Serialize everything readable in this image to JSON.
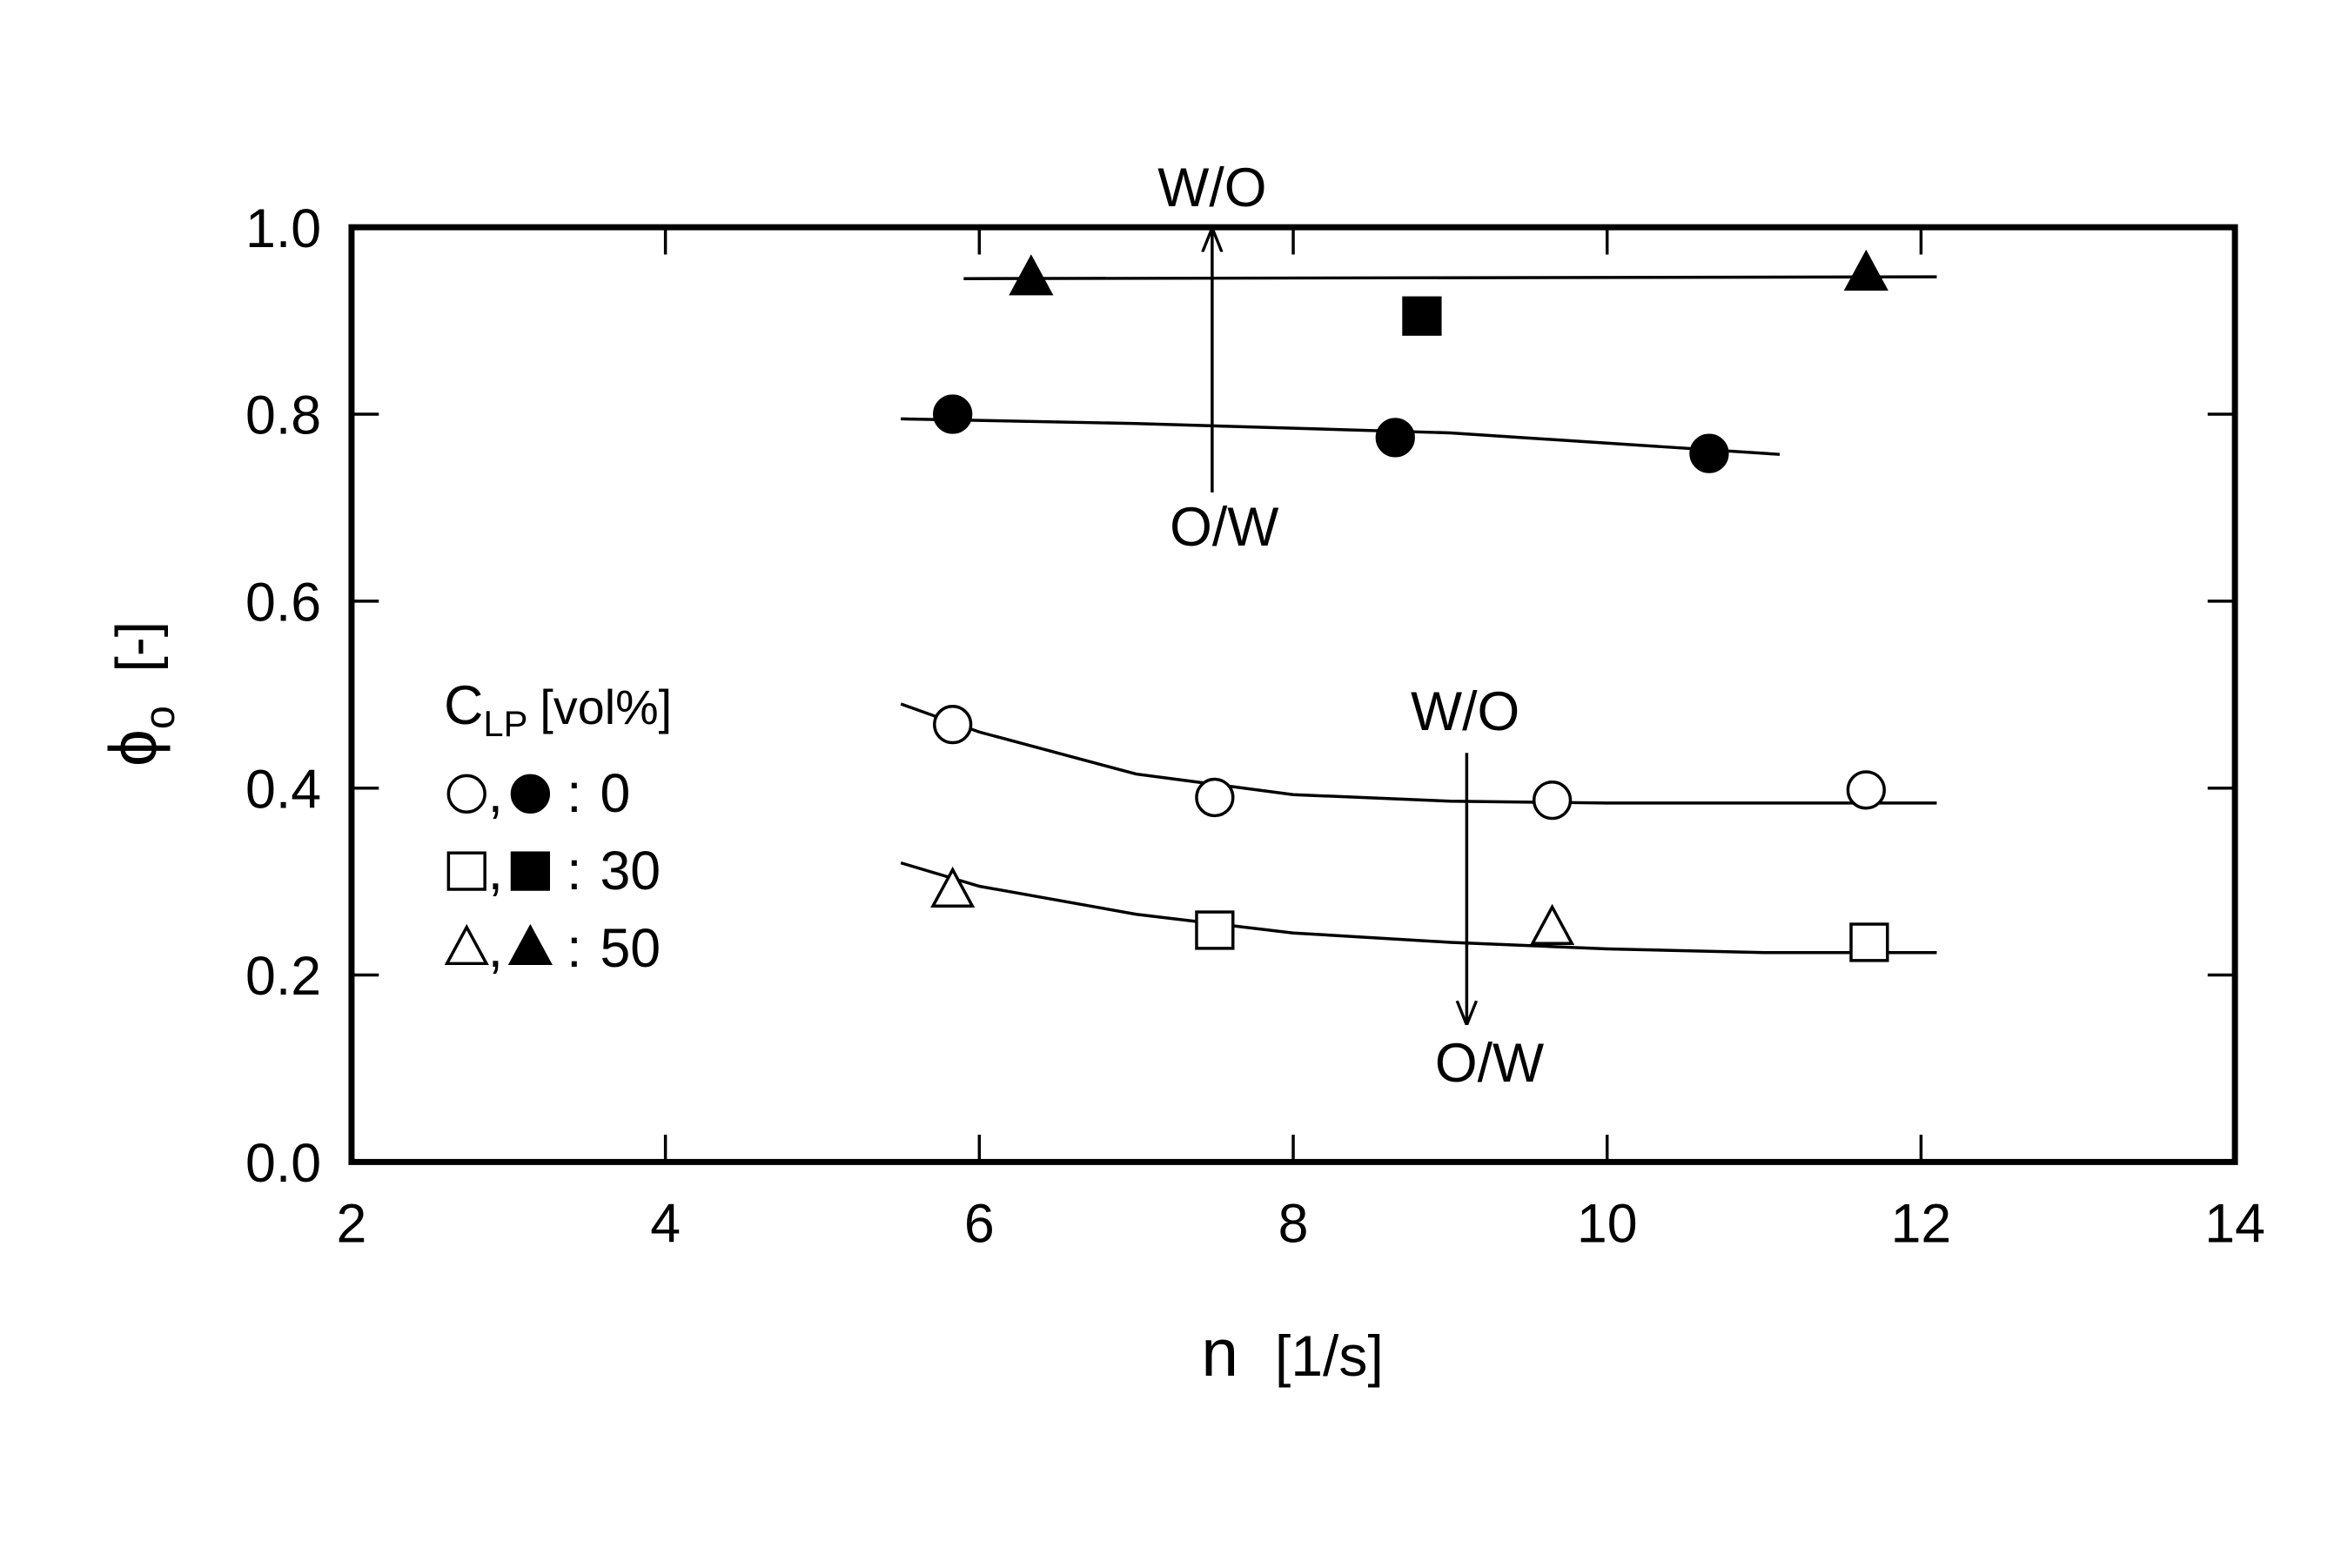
{
  "chart_data": {
    "type": "scatter",
    "xlabel": {
      "symbol": "n",
      "unit": "[1/s]"
    },
    "ylabel": {
      "symbol": "ϕ",
      "sub": "o",
      "unit": "[-]"
    },
    "xlim": [
      2,
      14
    ],
    "xticks": [
      2,
      4,
      6,
      8,
      10,
      12,
      14
    ],
    "ylim": [
      0,
      1
    ],
    "yticks": [
      {
        "value": 0,
        "label": "0.0"
      },
      {
        "value": 0.2,
        "label": "0.2"
      },
      {
        "value": 0.4,
        "label": "0.4"
      },
      {
        "value": 0.6,
        "label": "0.6"
      },
      {
        "value": 0.8,
        "label": "0.8"
      },
      {
        "value": 1,
        "label": "1.0"
      }
    ],
    "legend_title": {
      "symbol": "C",
      "sub": "LP",
      "unit": "[vol%]"
    },
    "series": [
      {
        "name": "0",
        "marker": "circle",
        "color": "#000000",
        "open": {
          "x": [
            5.83,
            7.5,
            9.65,
            11.65
          ],
          "y": [
            0.468,
            0.39,
            0.387,
            0.398
          ]
        },
        "filled": {
          "x": [
            5.83,
            8.65,
            10.65
          ],
          "y": [
            0.8,
            0.775,
            0.758
          ]
        }
      },
      {
        "name": "30",
        "marker": "square",
        "color": "#000000",
        "open": {
          "x": [
            7.5,
            11.67
          ],
          "y": [
            0.248,
            0.235
          ]
        },
        "filled": {
          "x": [
            8.82
          ],
          "y": [
            0.905
          ]
        }
      },
      {
        "name": "50",
        "marker": "triangle",
        "color": "#000000",
        "open": {
          "x": [
            5.83,
            9.65
          ],
          "y": [
            0.29,
            0.25
          ]
        },
        "filled": {
          "x": [
            6.33,
            11.65
          ],
          "y": [
            0.945,
            0.95
          ]
        }
      }
    ],
    "curves": [
      {
        "x": [
          5.5,
          7,
          9,
          11.1
        ],
        "y": [
          0.795,
          0.79,
          0.78,
          0.757
        ]
      },
      {
        "x": [
          5.9,
          12.1
        ],
        "y": [
          0.945,
          0.947
        ]
      },
      {
        "x": [
          5.5,
          6,
          7,
          8,
          9,
          10,
          12.1
        ],
        "y": [
          0.49,
          0.46,
          0.415,
          0.393,
          0.386,
          0.384,
          0.384
        ]
      },
      {
        "x": [
          5.5,
          6,
          7,
          8,
          9,
          10,
          11,
          12.1
        ],
        "y": [
          0.32,
          0.295,
          0.265,
          0.245,
          0.235,
          0.228,
          0.224,
          0.224
        ]
      }
    ],
    "annotations": [
      "W/O",
      "O/W",
      "W/O",
      "O/W"
    ]
  }
}
